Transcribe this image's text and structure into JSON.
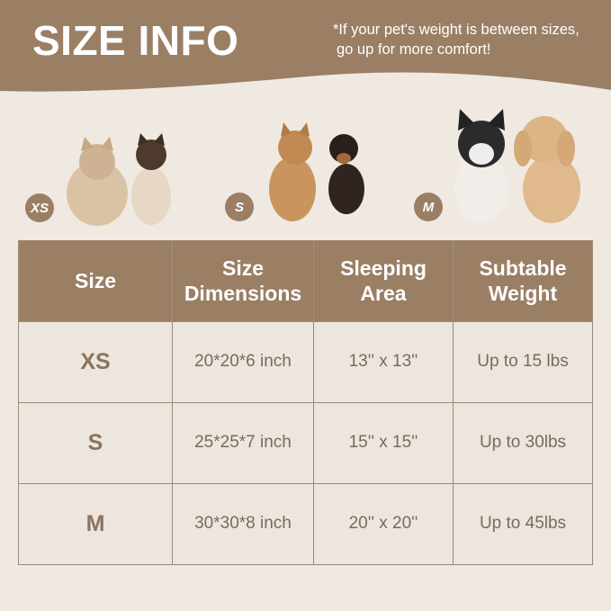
{
  "header": {
    "title": "SIZE INFO",
    "note_line1": "*If your pet's weight is between sizes,",
    "note_line2": "go up for more comfort!"
  },
  "badges": [
    "XS",
    "S",
    "M"
  ],
  "colors": {
    "brand": "#9a7f65",
    "background": "#efe9e2",
    "text": "#7a6a5c"
  },
  "table": {
    "headers": [
      [
        "Size"
      ],
      [
        "Size",
        "Dimensions"
      ],
      [
        "Sleeping",
        "Area"
      ],
      [
        "Subtable",
        "Weight"
      ]
    ],
    "rows": [
      [
        "XS",
        "20*20*6 inch",
        "13'' x 13''",
        "Up to 15 lbs"
      ],
      [
        "S",
        "25*25*7 inch",
        "15'' x 15''",
        "Up to 30lbs"
      ],
      [
        "M",
        "30*30*8 inch",
        "20'' x 20''",
        "Up to 45lbs"
      ]
    ]
  }
}
